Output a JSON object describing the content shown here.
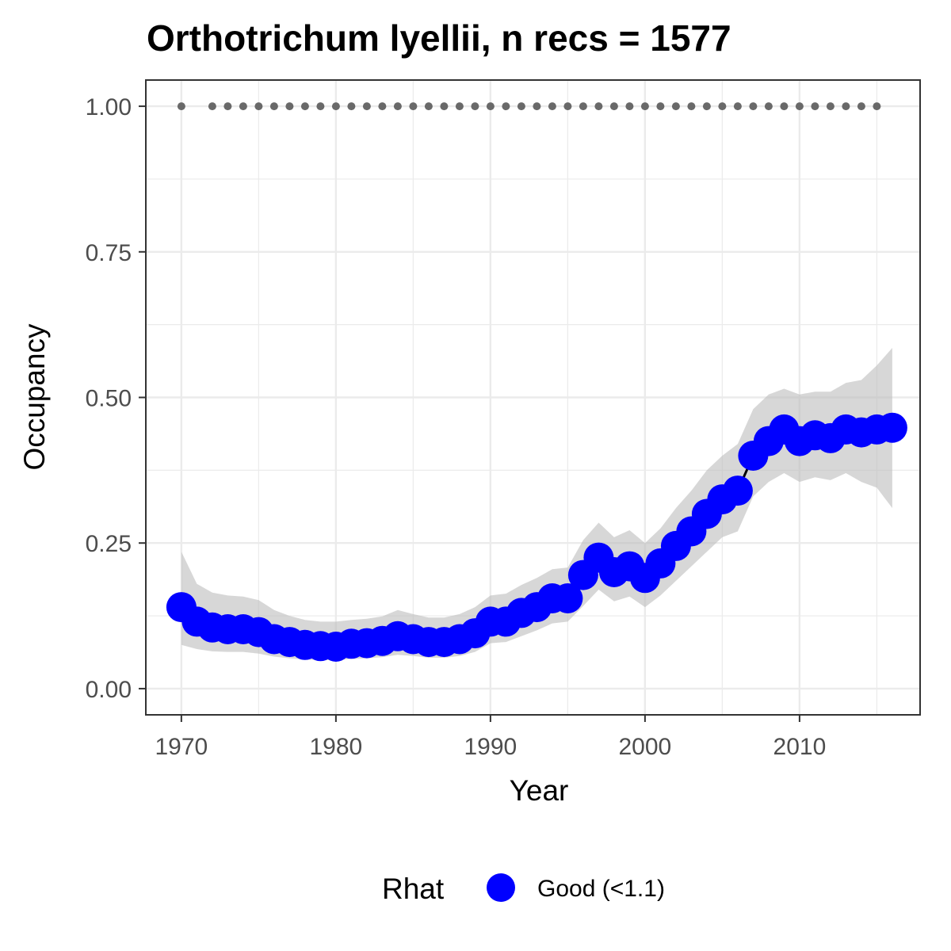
{
  "chart_data": {
    "type": "line",
    "title": "Orthotrichum lyellii, n recs = 1577",
    "xlabel": "Year",
    "ylabel": "Occupancy",
    "xlim": [
      1967.7,
      2017.8
    ],
    "ylim": [
      -0.045,
      1.045
    ],
    "x_ticks": [
      1970,
      1980,
      1990,
      2000,
      2010
    ],
    "x_tick_labels": [
      "1970",
      "1980",
      "1990",
      "2000",
      "2010"
    ],
    "y_ticks": [
      0,
      0.25,
      0.5,
      0.75,
      1.0
    ],
    "y_tick_labels": [
      "0.00",
      "0.25",
      "0.50",
      "0.75",
      "1.00"
    ],
    "grid": true,
    "legend": {
      "title": "Rhat",
      "position": "bottom",
      "entries": [
        {
          "label": "Good (<1.1)",
          "color": "#0000ff"
        }
      ]
    },
    "colors": {
      "points": "#0000ff",
      "line": "#000000",
      "ribbon": "#bdbdbd",
      "reference_dots": "#696969",
      "grid": "#ebebeb",
      "panel_border": "#333333"
    },
    "series": [
      {
        "x": [
          1970,
          1971,
          1972,
          1973,
          1974,
          1975,
          1976,
          1977,
          1978,
          1979,
          1980,
          1981,
          1982,
          1983,
          1984,
          1985,
          1986,
          1987,
          1988,
          1989,
          1990,
          1991,
          1992,
          1993,
          1994,
          1995,
          1996,
          1997,
          1998,
          1999,
          2000,
          2001,
          2002,
          2003,
          2004,
          2005,
          2006,
          2007,
          2008,
          2009,
          2010,
          2011,
          2012,
          2013,
          2014,
          2015,
          2016
        ],
        "y": [
          0.14,
          0.115,
          0.105,
          0.102,
          0.102,
          0.097,
          0.085,
          0.08,
          0.075,
          0.073,
          0.072,
          0.077,
          0.078,
          0.082,
          0.09,
          0.085,
          0.08,
          0.08,
          0.085,
          0.095,
          0.115,
          0.115,
          0.13,
          0.14,
          0.155,
          0.155,
          0.195,
          0.225,
          0.2,
          0.21,
          0.19,
          0.215,
          0.245,
          0.27,
          0.3,
          0.325,
          0.34,
          0.4,
          0.425,
          0.445,
          0.425,
          0.435,
          0.43,
          0.445,
          0.44,
          0.445,
          0.448
        ],
        "lower": [
          0.075,
          0.068,
          0.064,
          0.063,
          0.063,
          0.06,
          0.055,
          0.052,
          0.05,
          0.049,
          0.049,
          0.051,
          0.052,
          0.054,
          0.058,
          0.056,
          0.053,
          0.053,
          0.056,
          0.063,
          0.078,
          0.08,
          0.09,
          0.1,
          0.112,
          0.115,
          0.142,
          0.17,
          0.15,
          0.158,
          0.14,
          0.16,
          0.185,
          0.21,
          0.235,
          0.26,
          0.27,
          0.33,
          0.355,
          0.37,
          0.355,
          0.363,
          0.358,
          0.37,
          0.355,
          0.345,
          0.31
        ],
        "upper": [
          0.235,
          0.18,
          0.165,
          0.16,
          0.158,
          0.152,
          0.135,
          0.125,
          0.118,
          0.115,
          0.115,
          0.118,
          0.12,
          0.124,
          0.135,
          0.128,
          0.122,
          0.122,
          0.128,
          0.14,
          0.16,
          0.163,
          0.178,
          0.19,
          0.205,
          0.208,
          0.255,
          0.285,
          0.26,
          0.272,
          0.25,
          0.275,
          0.31,
          0.34,
          0.375,
          0.4,
          0.42,
          0.48,
          0.505,
          0.515,
          0.505,
          0.51,
          0.51,
          0.525,
          0.53,
          0.555,
          0.585
        ]
      },
      {
        "x": [
          1970,
          1972,
          1973,
          1974,
          1975,
          1976,
          1977,
          1978,
          1979,
          1980,
          1981,
          1982,
          1983,
          1984,
          1985,
          1986,
          1987,
          1988,
          1989,
          1990,
          1991,
          1992,
          1993,
          1994,
          1995,
          1996,
          1997,
          1998,
          1999,
          2000,
          2001,
          2002,
          2003,
          2004,
          2005,
          2006,
          2007,
          2008,
          2009,
          2010,
          2011,
          2012,
          2013,
          2014,
          2015
        ],
        "y": [
          1,
          1,
          1,
          1,
          1,
          1,
          1,
          1,
          1,
          1,
          1,
          1,
          1,
          1,
          1,
          1,
          1,
          1,
          1,
          1,
          1,
          1,
          1,
          1,
          1,
          1,
          1,
          1,
          1,
          1,
          1,
          1,
          1,
          1,
          1,
          1,
          1,
          1,
          1,
          1,
          1,
          1,
          1,
          1,
          1
        ]
      }
    ]
  }
}
